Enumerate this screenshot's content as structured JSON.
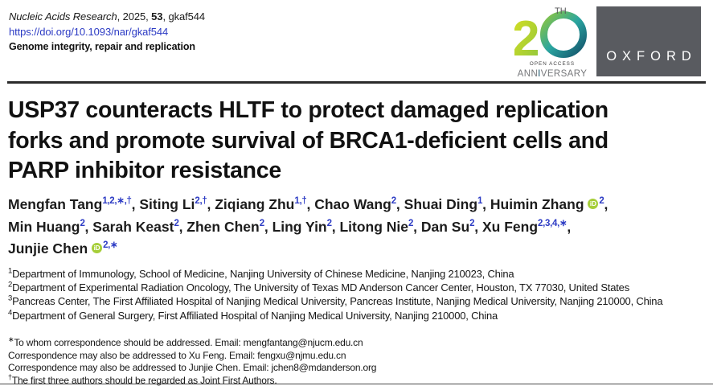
{
  "masthead": {
    "citation_parts": [
      {
        "text": "Nucleic Acids Research",
        "style": "italic"
      },
      {
        "text": ", 2025, ",
        "style": "normal"
      },
      {
        "text": "53",
        "style": "bold"
      },
      {
        "text": ", gkaf544",
        "style": "normal"
      }
    ],
    "doi": "https://doi.org/10.1093/nar/gkaf544",
    "subject": "Genome integrity, repair and replication"
  },
  "logos": {
    "anniversary": {
      "number": "20",
      "th": "TH",
      "open_access": "OPEN ACCESS",
      "anniversary_pre": "ANN",
      "anniversary_i": "I",
      "anniversary_post": "VERSARY"
    },
    "oxford": "OXFORD"
  },
  "title_lines": [
    "USP37 counteracts HLTF to protect damaged replication",
    "forks and promote survival of BRCA1-deficient cells and",
    "PARP inhibitor resistance"
  ],
  "orcid_icon_label": "iD",
  "authors": [
    {
      "name": "Mengfan Tang",
      "sup": "1,2,∗,†",
      "orcid": false,
      "trail": ", ",
      "break_after": false
    },
    {
      "name": "Siting Li",
      "sup": "2,†",
      "orcid": false,
      "trail": ", ",
      "break_after": false
    },
    {
      "name": "Ziqiang Zhu",
      "sup": "1,†",
      "orcid": false,
      "trail": ", ",
      "break_after": false
    },
    {
      "name": "Chao Wang",
      "sup": "2",
      "orcid": false,
      "trail": ", ",
      "break_after": false
    },
    {
      "name": "Shuai Ding",
      "sup": "1",
      "orcid": false,
      "trail": ", ",
      "break_after": false
    },
    {
      "name": "Huimin Zhang",
      "sup": "2",
      "orcid": true,
      "trail": ",",
      "break_after": true
    },
    {
      "name": "Min Huang",
      "sup": "2",
      "orcid": false,
      "trail": ", ",
      "break_after": false
    },
    {
      "name": "Sarah Keast",
      "sup": "2",
      "orcid": false,
      "trail": ", ",
      "break_after": false
    },
    {
      "name": "Zhen Chen",
      "sup": "2",
      "orcid": false,
      "trail": ", ",
      "break_after": false
    },
    {
      "name": "Ling Yin",
      "sup": "2",
      "orcid": false,
      "trail": ", ",
      "break_after": false
    },
    {
      "name": "Litong Nie",
      "sup": "2",
      "orcid": false,
      "trail": ", ",
      "break_after": false
    },
    {
      "name": "Dan Su",
      "sup": "2",
      "orcid": false,
      "trail": ", ",
      "break_after": false
    },
    {
      "name": "Xu Feng",
      "sup": "2,3,4,∗",
      "orcid": false,
      "trail": ",",
      "break_after": true
    },
    {
      "name": "Junjie Chen",
      "sup": "2,∗",
      "orcid": true,
      "trail": "",
      "break_after": false
    }
  ],
  "affiliations": [
    {
      "marker": "1",
      "text": "Department of Immunology, School of Medicine, Nanjing University of Chinese Medicine, Nanjing 210023, China"
    },
    {
      "marker": "2",
      "text": "Department of Experimental Radiation Oncology, The University of Texas MD Anderson Cancer Center, Houston, TX 77030, United States"
    },
    {
      "marker": "3",
      "text": "Pancreas Center, The First Affiliated Hospital of Nanjing Medical University, Pancreas Institute, Nanjing Medical University, Nanjing 210000, China"
    },
    {
      "marker": "4",
      "text": "Department of General Surgery, First Affiliated Hospital of Nanjing Medical University, Nanjing 210000, China"
    }
  ],
  "correspondence": [
    {
      "marker": "∗",
      "text": "To whom correspondence should be addressed. Email: mengfantang@njucm.edu.cn"
    },
    {
      "marker": "",
      "text": "Correspondence may also be addressed to Xu Feng. Email: fengxu@njmu.edu.cn"
    },
    {
      "marker": "",
      "text": "Correspondence may also be addressed to Junjie Chen. Email: jchen8@mdanderson.org"
    },
    {
      "marker": "†",
      "text": "The first three authors should be regarded as Joint First Authors."
    }
  ],
  "colors": {
    "link_blue": "#2c3bc4",
    "orcid_green": "#a6ce39",
    "oxford_gray": "#595b60",
    "rule_dark": "#2b2b2b",
    "logo_lime": "#c8d92e",
    "logo_green": "#8dc63f",
    "logo_teal": "#2aa5a0",
    "logo_navy": "#14536b"
  }
}
